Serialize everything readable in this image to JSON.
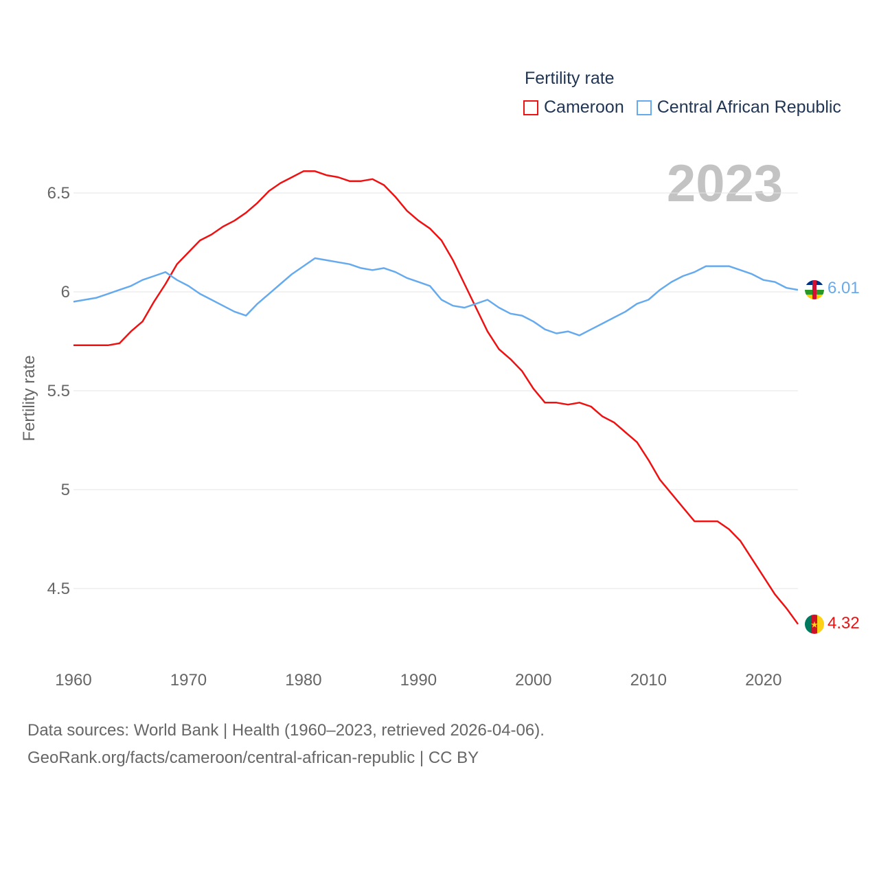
{
  "legend": {
    "title": "Fertility rate",
    "items": [
      {
        "label": "Cameroon",
        "color": "#ee1111"
      },
      {
        "label": "Central African Republic",
        "color": "#66aaee"
      }
    ]
  },
  "year_display": "2023",
  "footer": {
    "line1": "Data sources: World Bank | Health (1960–2023, retrieved 2026-04-06).",
    "line2": "GeoRank.org/facts/cameroon/central-african-republic | CC BY"
  },
  "chart_data": {
    "type": "line",
    "title": "Fertility rate",
    "xlabel": "",
    "ylabel": "Fertility rate",
    "xlim": [
      1960,
      2023
    ],
    "ylim": [
      4.25,
      6.75
    ],
    "x_ticks": [
      1960,
      1970,
      1980,
      1990,
      2000,
      2010,
      2020
    ],
    "x_tick_labels": [
      "1960",
      "1970",
      "1980",
      "1990",
      "2000",
      "2010",
      "2020"
    ],
    "y_ticks": [
      4.5,
      5,
      5.5,
      6,
      6.5
    ],
    "y_tick_labels": [
      "4.5",
      "5",
      "5.5",
      "6",
      "6.5"
    ],
    "grid": true,
    "legend_position": "top-right",
    "x": [
      1960,
      1961,
      1962,
      1963,
      1964,
      1965,
      1966,
      1967,
      1968,
      1969,
      1970,
      1971,
      1972,
      1973,
      1974,
      1975,
      1976,
      1977,
      1978,
      1979,
      1980,
      1981,
      1982,
      1983,
      1984,
      1985,
      1986,
      1987,
      1988,
      1989,
      1990,
      1991,
      1992,
      1993,
      1994,
      1995,
      1996,
      1997,
      1998,
      1999,
      2000,
      2001,
      2002,
      2003,
      2004,
      2005,
      2006,
      2007,
      2008,
      2009,
      2010,
      2011,
      2012,
      2013,
      2014,
      2015,
      2016,
      2017,
      2018,
      2019,
      2020,
      2021,
      2022,
      2023
    ],
    "series": [
      {
        "name": "Cameroon",
        "color": "#ee1111",
        "end_label": "4.32",
        "flag": "cameroon-flag",
        "values": [
          5.73,
          5.73,
          5.73,
          5.73,
          5.74,
          5.8,
          5.85,
          5.95,
          6.04,
          6.14,
          6.2,
          6.26,
          6.29,
          6.33,
          6.36,
          6.4,
          6.45,
          6.51,
          6.55,
          6.58,
          6.61,
          6.61,
          6.59,
          6.58,
          6.56,
          6.56,
          6.57,
          6.54,
          6.48,
          6.41,
          6.36,
          6.32,
          6.26,
          6.16,
          6.04,
          5.92,
          5.8,
          5.71,
          5.66,
          5.6,
          5.51,
          5.44,
          5.44,
          5.43,
          5.44,
          5.42,
          5.37,
          5.34,
          5.29,
          5.24,
          5.15,
          5.05,
          4.98,
          4.91,
          4.84,
          4.84,
          4.84,
          4.8,
          4.74,
          4.65,
          4.56,
          4.47,
          4.4,
          4.32
        ]
      },
      {
        "name": "Central African Republic",
        "color": "#66aaee",
        "end_label": "6.01",
        "flag": "central-african-republic-flag",
        "values": [
          5.95,
          5.96,
          5.97,
          5.99,
          6.01,
          6.03,
          6.06,
          6.08,
          6.1,
          6.06,
          6.03,
          5.99,
          5.96,
          5.93,
          5.9,
          5.88,
          5.94,
          5.99,
          6.04,
          6.09,
          6.13,
          6.17,
          6.16,
          6.15,
          6.14,
          6.12,
          6.11,
          6.12,
          6.1,
          6.07,
          6.05,
          6.03,
          5.96,
          5.93,
          5.92,
          5.94,
          5.96,
          5.92,
          5.89,
          5.88,
          5.85,
          5.81,
          5.79,
          5.8,
          5.78,
          5.81,
          5.84,
          5.87,
          5.9,
          5.94,
          5.96,
          6.01,
          6.05,
          6.08,
          6.1,
          6.13,
          6.13,
          6.13,
          6.11,
          6.09,
          6.06,
          6.05,
          6.02,
          6.01
        ]
      }
    ]
  }
}
